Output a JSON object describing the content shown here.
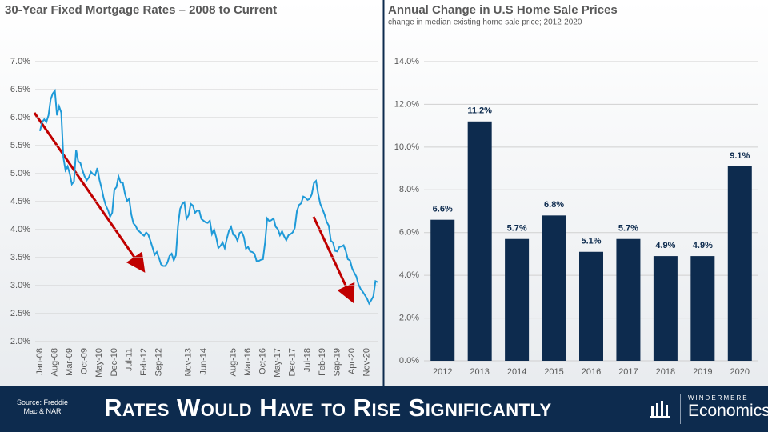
{
  "chart_data": [
    {
      "type": "line",
      "title": "30-Year Fixed Mortgage Rates – 2008 to Current",
      "categories": [
        "Jan-08",
        null,
        null,
        null,
        null,
        null,
        null,
        "Aug-08",
        null,
        null,
        null,
        null,
        null,
        null,
        "Mar-09",
        null,
        null,
        null,
        null,
        null,
        null,
        "Oct-09",
        null,
        null,
        null,
        null,
        null,
        null,
        "May-10",
        null,
        null,
        null,
        null,
        null,
        null,
        "Dec-10",
        null,
        null,
        null,
        null,
        null,
        null,
        "Jul-11",
        null,
        null,
        null,
        null,
        null,
        null,
        "Feb-12",
        null,
        null,
        null,
        null,
        null,
        null,
        "Sep-12",
        null,
        null,
        null,
        null,
        null,
        null,
        null,
        null,
        null,
        null,
        null,
        null,
        null,
        "Nov-13",
        null,
        null,
        null,
        null,
        null,
        null,
        "Jun-14",
        null,
        null,
        null,
        null,
        null,
        null,
        null,
        null,
        null,
        null,
        null,
        null,
        null,
        "Aug-15",
        null,
        null,
        null,
        null,
        null,
        null,
        "Mar-16",
        null,
        null,
        null,
        null,
        null,
        null,
        "Oct-16",
        null,
        null,
        null,
        null,
        null,
        null,
        "May-17",
        null,
        null,
        null,
        null,
        null,
        null,
        "Dec-17",
        null,
        null,
        null,
        null,
        null,
        null,
        "Jul-18",
        null,
        null,
        null,
        null,
        null,
        null,
        "Feb-19",
        null,
        null,
        null,
        null,
        null,
        null,
        "Sep-19",
        null,
        null,
        null,
        null,
        null,
        null,
        "Apr-20",
        null,
        null,
        null,
        null,
        null,
        null,
        "Nov-20",
        null,
        null,
        null,
        null,
        null
      ],
      "series": [
        {
          "color": "#1f9ad8",
          "values": [
            5.76,
            5.92,
            5.97,
            5.92,
            6.04,
            6.32,
            6.43,
            6.48,
            6.04,
            6.2,
            6.09,
            5.29,
            5.06,
            5.13,
            5.0,
            4.81,
            4.86,
            5.42,
            5.22,
            5.19,
            5.06,
            4.95,
            4.88,
            4.93,
            5.03,
            4.99,
            4.97,
            5.1,
            4.89,
            4.74,
            4.56,
            4.43,
            4.35,
            4.23,
            4.3,
            4.71,
            4.76,
            4.95,
            4.84,
            4.84,
            4.64,
            4.51,
            4.55,
            4.27,
            4.11,
            4.07,
            3.99,
            3.96,
            3.92,
            3.89,
            3.95,
            3.91,
            3.8,
            3.68,
            3.55,
            3.6,
            3.5,
            3.38,
            3.35,
            3.35,
            3.41,
            3.53,
            3.57,
            3.45,
            3.54,
            4.07,
            4.37,
            4.46,
            4.49,
            4.19,
            4.26,
            4.46,
            4.43,
            4.3,
            4.34,
            4.34,
            4.19,
            4.16,
            4.13,
            4.12,
            4.16,
            3.92,
            4.0,
            3.86,
            3.67,
            3.71,
            3.77,
            3.67,
            3.84,
            3.98,
            4.05,
            3.91,
            3.89,
            3.8,
            3.94,
            3.96,
            3.87,
            3.66,
            3.69,
            3.61,
            3.6,
            3.57,
            3.44,
            3.44,
            3.46,
            3.47,
            3.77,
            4.2,
            4.15,
            4.17,
            4.2,
            4.05,
            4.01,
            3.9,
            3.97,
            3.88,
            3.81,
            3.9,
            3.92,
            3.95,
            4.03,
            4.33,
            4.44,
            4.47,
            4.59,
            4.57,
            4.53,
            4.55,
            4.63,
            4.83,
            4.87,
            4.64,
            4.46,
            4.37,
            4.27,
            4.14,
            4.07,
            3.8,
            3.77,
            3.62,
            3.61,
            3.69,
            3.7,
            3.72,
            3.62,
            3.47,
            3.45,
            3.31,
            3.23,
            3.16,
            3.02,
            2.94,
            2.89,
            2.83,
            2.77,
            2.68,
            2.74,
            2.81,
            3.08,
            3.06
          ]
        }
      ],
      "ylim": [
        2,
        7
      ],
      "yticks": [
        {
          "value": 2,
          "label": "2.0%"
        },
        {
          "value": 2.5,
          "label": "2.5%"
        },
        {
          "value": 3,
          "label": "3.0%"
        },
        {
          "value": 3.5,
          "label": "3.5%"
        },
        {
          "value": 4,
          "label": "4.0%"
        },
        {
          "value": 4.5,
          "label": "4.5%"
        },
        {
          "value": 5,
          "label": "5.0%"
        },
        {
          "value": 5.5,
          "label": "5.5%"
        },
        {
          "value": 6,
          "label": "6.0%"
        },
        {
          "value": 6.5,
          "label": "6.5%"
        },
        {
          "value": 7,
          "label": "7.0%"
        }
      ],
      "grid": true
    },
    {
      "type": "bar",
      "title": "Annual Change in U.S Home Sale Prices",
      "subtitle": "change in median  existing home sale price; 2012-2020",
      "categories": [
        "2012",
        "2013",
        "2014",
        "2015",
        "2016",
        "2017",
        "2018",
        "2019",
        "2020"
      ],
      "values": [
        6.6,
        11.2,
        5.7,
        6.8,
        5.1,
        5.7,
        4.9,
        4.9,
        9.1
      ],
      "value_labels": [
        "6.6%",
        "11.2%",
        "5.7%",
        "6.8%",
        "5.1%",
        "5.7%",
        "4.9%",
        "4.9%",
        "9.1%"
      ],
      "color": "#0d2b4e",
      "ylim": [
        0,
        14
      ],
      "yticks": [
        {
          "value": 0,
          "label": "0.0%"
        },
        {
          "value": 2,
          "label": "2.0%"
        },
        {
          "value": 4,
          "label": "4.0%"
        },
        {
          "value": 6,
          "label": "6.0%"
        },
        {
          "value": 8,
          "label": "8.0%"
        },
        {
          "value": 10,
          "label": "10.0%"
        },
        {
          "value": 12,
          "label": "12.0%"
        },
        {
          "value": 14,
          "label": "14.0%"
        }
      ],
      "grid": true
    }
  ],
  "footer": {
    "source": "Source: Freddie Mac & NAR",
    "headline": "Rates Would Have to Rise Significantly",
    "brand": "WINDERMERE",
    "brand_sub": "Economics"
  }
}
